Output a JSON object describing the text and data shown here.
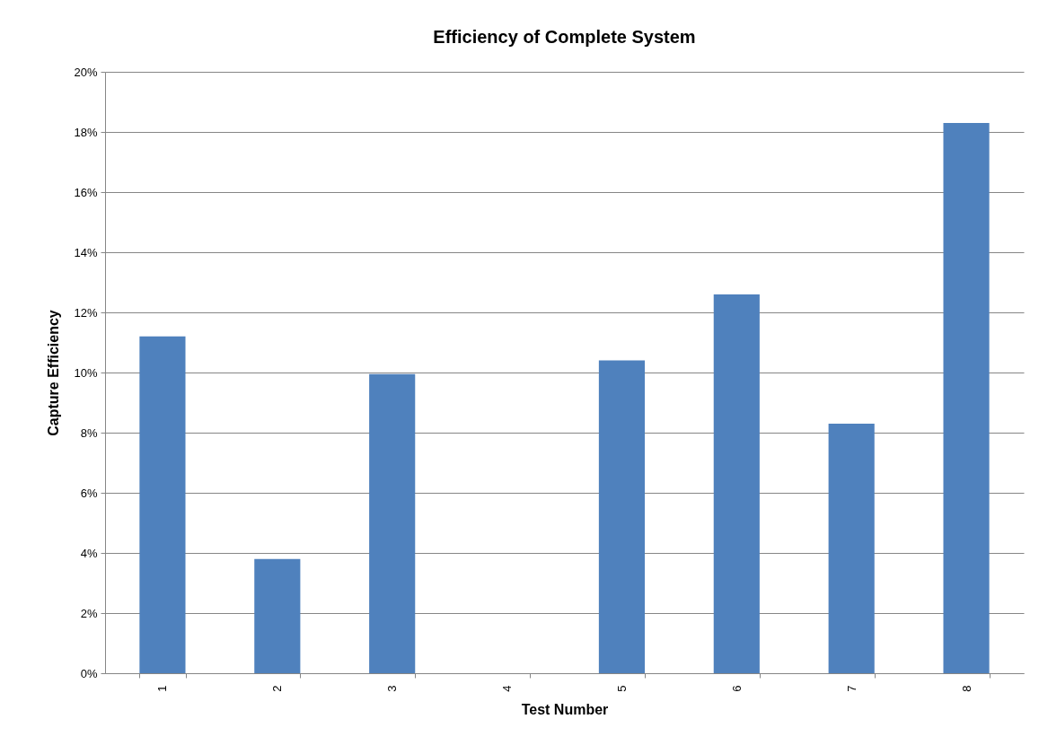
{
  "chart_data": {
    "type": "bar",
    "title": "Efficiency of Complete System",
    "xlabel": "Test Number",
    "ylabel": "Capture Efficiency",
    "categories": [
      "1",
      "2",
      "3",
      "4",
      "5",
      "6",
      "7",
      "8"
    ],
    "values": [
      11.2,
      3.8,
      9.95,
      0,
      10.4,
      12.6,
      8.3,
      18.3
    ],
    "color": "#4f81bd",
    "ylim": [
      0,
      20
    ],
    "yticks": [
      {
        "value": 0,
        "label": "0%"
      },
      {
        "value": 2,
        "label": "2%"
      },
      {
        "value": 4,
        "label": "4%"
      },
      {
        "value": 6,
        "label": "6%"
      },
      {
        "value": 8,
        "label": "8%"
      },
      {
        "value": 10,
        "label": "10%"
      },
      {
        "value": 12,
        "label": "12%"
      },
      {
        "value": 14,
        "label": "14%"
      },
      {
        "value": 16,
        "label": "16%"
      },
      {
        "value": 18,
        "label": "18%"
      },
      {
        "value": 20,
        "label": "20%"
      }
    ],
    "grid": "y"
  }
}
